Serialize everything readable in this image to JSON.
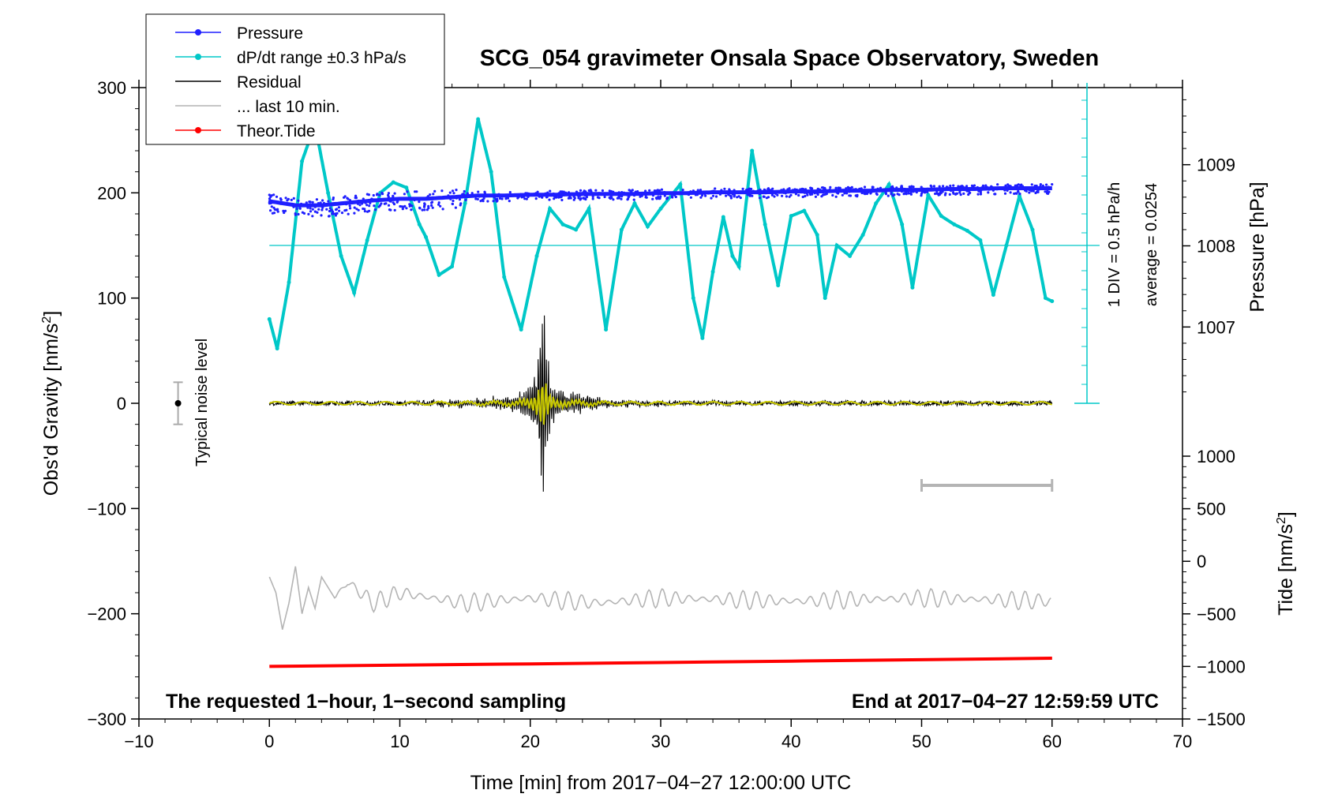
{
  "chart_data": {
    "type": "line",
    "title": "SCG_054 gravimeter Onsala Space Observatory, Sweden",
    "xlabel": "Time [min] from 2017−04−27 12:00:00 UTC",
    "ylabel_left": "Obs'd Gravity [nm/s",
    "ylabel_left_sup": "2",
    "ylabel_left_end": "]",
    "ylabel_right_top": "Pressure [hPa]",
    "ylabel_right_bottom": "Tide [nm/s",
    "ylabel_right_bottom_sup": "2",
    "ylabel_right_bottom_end": "]",
    "xlim": [
      -10,
      70
    ],
    "ylim_left": [
      -300,
      300
    ],
    "x_ticks": [
      "−10",
      "0",
      "10",
      "20",
      "30",
      "40",
      "50",
      "60",
      "70"
    ],
    "x_tick_values": [
      -10,
      0,
      10,
      20,
      30,
      40,
      50,
      60,
      70
    ],
    "y_left_ticks": [
      "300",
      "200",
      "100",
      "0",
      "−100",
      "−200",
      "−300"
    ],
    "y_left_tick_values": [
      300,
      200,
      100,
      0,
      -100,
      -200,
      -300
    ],
    "pressure_axis": {
      "ticks": [
        "1009",
        "1008",
        "1007"
      ],
      "tick_values": [
        1009,
        1008,
        1007
      ],
      "range": [
        1006.05,
        1009.95
      ]
    },
    "tide_axis": {
      "ticks": [
        "1000",
        "500",
        "0",
        "−500",
        "−1000",
        "−1500"
      ],
      "tick_values": [
        1000,
        500,
        0,
        -500,
        -1000,
        -1500
      ],
      "range": [
        -1500,
        1000
      ]
    },
    "legend": [
      {
        "label": "Pressure",
        "color": "#1f1fff",
        "marker": true
      },
      {
        "label": "dP/dt range ±0.3 hPa/s",
        "color": "#00c8c8",
        "marker": true
      },
      {
        "label": "Residual",
        "color": "#000000",
        "marker": false
      },
      {
        "label": "... last 10 min.",
        "color": "#b4b4b4",
        "marker": false
      },
      {
        "label": "Theor.Tide",
        "color": "#ff0000",
        "marker": true
      }
    ],
    "annotations": {
      "noise_label": "Typical noise level",
      "noise_range": [
        -20,
        20
      ],
      "div_label": "1 DIV = 0.5 hPa/h",
      "avg_label": "average = 0.0254",
      "sampling_note": "The requested 1−hour, 1−second sampling",
      "end_note": "End at 2017−04−27 12:59:59 UTC",
      "last10_bar_minutes": [
        50,
        60
      ]
    },
    "series": [
      {
        "name": "Pressure",
        "color": "#1f1fff",
        "axis": "pressure",
        "x": [
          0,
          2,
          4,
          6,
          8,
          10,
          12,
          14,
          16,
          18,
          20,
          22,
          24,
          26,
          28,
          30,
          32,
          34,
          36,
          38,
          40,
          42,
          44,
          46,
          48,
          50,
          52,
          54,
          56,
          58,
          60
        ],
        "values": [
          1008.55,
          1008.5,
          1008.5,
          1008.53,
          1008.56,
          1008.58,
          1008.58,
          1008.6,
          1008.62,
          1008.62,
          1008.63,
          1008.63,
          1008.64,
          1008.64,
          1008.64,
          1008.65,
          1008.65,
          1008.66,
          1008.66,
          1008.66,
          1008.67,
          1008.67,
          1008.68,
          1008.68,
          1008.69,
          1008.69,
          1008.7,
          1008.7,
          1008.71,
          1008.71,
          1008.71
        ]
      },
      {
        "name": "dP/dt",
        "color": "#00c8c8",
        "axis": "left",
        "x": [
          0,
          0.6,
          1.5,
          2.5,
          3.5,
          4.5,
          5.5,
          6.5,
          7.5,
          8.5,
          9.5,
          10.5,
          11.5,
          12,
          13,
          14,
          15,
          16,
          17,
          18,
          19.3,
          20.5,
          21.5,
          22.5,
          23.5,
          24.5,
          25.8,
          27,
          28,
          29,
          30,
          31.5,
          32.5,
          33.2,
          34,
          34.8,
          35.5,
          36,
          37,
          38,
          39,
          40,
          41,
          42,
          42.6,
          43.5,
          44.5,
          45.5,
          46.5,
          47.5,
          48.5,
          49.3,
          50.5,
          51.5,
          52.5,
          53.5,
          54.5,
          55.5,
          56.5,
          57.5,
          58.5,
          59.5,
          60
        ],
        "values": [
          80,
          52,
          115,
          230,
          265,
          200,
          140,
          105,
          155,
          200,
          210,
          205,
          170,
          158,
          122,
          130,
          190,
          270,
          220,
          120,
          70,
          140,
          185,
          170,
          165,
          185,
          70,
          165,
          190,
          168,
          185,
          208,
          100,
          62,
          125,
          177,
          140,
          130,
          240,
          170,
          112,
          178,
          183,
          160,
          100,
          150,
          140,
          160,
          190,
          208,
          170,
          110,
          198,
          178,
          170,
          164,
          155,
          103,
          150,
          197,
          165,
          100,
          97
        ]
      },
      {
        "name": "Residual",
        "color": "#000000",
        "axis": "left",
        "x": [
          0,
          10,
          14,
          17,
          19,
          20,
          20.5,
          21,
          21.5,
          22,
          23,
          24,
          25,
          26,
          28,
          30,
          35,
          40,
          50,
          60
        ],
        "values": [
          0,
          0,
          3,
          5,
          8,
          20,
          40,
          100,
          30,
          15,
          10,
          8,
          6,
          3,
          2,
          2,
          1,
          1,
          1,
          0
        ]
      },
      {
        "name": "... last 10 min.",
        "color": "#b4b4b4",
        "axis": "left",
        "x": [
          0,
          0.5,
          1,
          1.5,
          2,
          2.5,
          3,
          3.5,
          4,
          5,
          6,
          8,
          10,
          15,
          20,
          25,
          30,
          40,
          50,
          60
        ],
        "values": [
          -165,
          -180,
          -215,
          -190,
          -155,
          -200,
          -175,
          -195,
          -165,
          -185,
          -170,
          -190,
          -180,
          -190,
          -185,
          -190,
          -185,
          -188,
          -185,
          -188
        ]
      },
      {
        "name": "Theor.Tide",
        "color": "#ff0000",
        "axis": "tide",
        "x": [
          0,
          10,
          20,
          30,
          40,
          50,
          60
        ],
        "values": [
          -1000,
          -988,
          -976,
          -963,
          -950,
          -936,
          -922
        ]
      }
    ]
  }
}
